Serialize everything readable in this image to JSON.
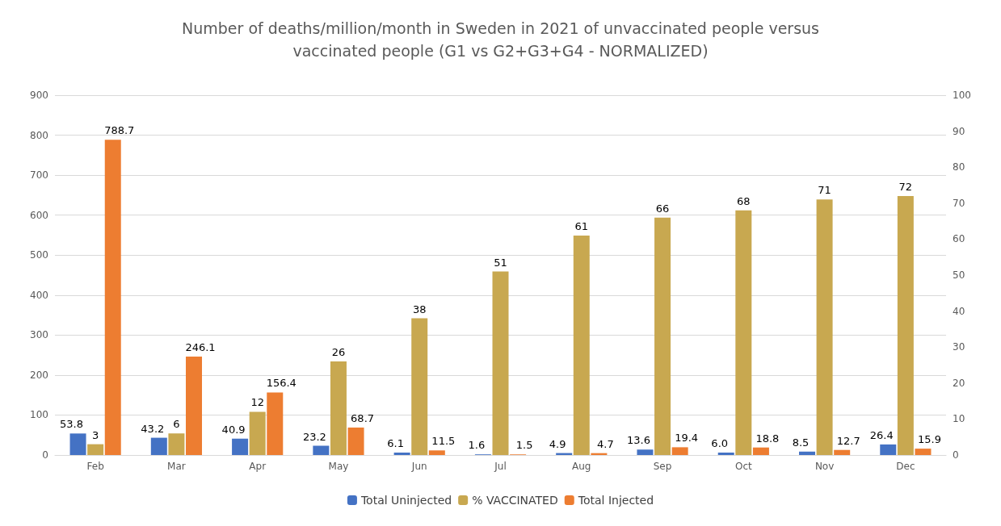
{
  "chart_data": {
    "type": "bar",
    "title": "Number of deaths/million/month in Sweden in 2021 of unvaccinated people versus\nvaccinated people (G1 vs G2+G3+G4 - NORMALIZED)",
    "categories": [
      "Feb",
      "Mar",
      "Apr",
      "May",
      "Jun",
      "Jul",
      "Aug",
      "Sep",
      "Oct",
      "Nov",
      "Dec"
    ],
    "series": [
      {
        "name": "Total Uninjected",
        "color": "#4472c4",
        "values": [
          53.8,
          43.2,
          40.9,
          23.2,
          6.1,
          1.6,
          4.9,
          13.6,
          6.0,
          8.5,
          26.4
        ],
        "value_labels": [
          "53.8",
          "43.2",
          "40.9",
          "23.2",
          "6.1",
          "1.6",
          "4.9",
          "13.6",
          "6.0",
          "8.5",
          "26.4"
        ]
      },
      {
        "name": "% VACCINATED",
        "color": "#c8a850",
        "axis": "y2",
        "values": [
          3,
          6,
          12,
          26,
          38,
          51,
          61,
          66,
          68,
          71,
          72
        ],
        "value_labels": [
          "3",
          "6",
          "12",
          "26",
          "38",
          "51",
          "61",
          "66",
          "68",
          "71",
          "72"
        ]
      },
      {
        "name": "Total Injected",
        "color": "#ed7d31",
        "values": [
          788.7,
          246.1,
          156.4,
          68.7,
          11.5,
          1.5,
          4.7,
          19.4,
          18.8,
          12.7,
          15.9
        ],
        "value_labels": [
          "788.7",
          "246.1",
          "156.4",
          "68.7",
          "11.5",
          "1.5",
          "4.7",
          "19.4",
          "18.8",
          "12.7",
          "15.9"
        ]
      }
    ],
    "ylim": [
      0,
      900
    ],
    "yticks": [
      0,
      100,
      200,
      300,
      400,
      500,
      600,
      700,
      800,
      900
    ],
    "y2lim": [
      0,
      100
    ],
    "y2ticks": [
      0,
      10,
      20,
      30,
      40,
      50,
      60,
      70,
      80,
      90,
      100
    ],
    "grid": "y",
    "legend": "bottom"
  }
}
